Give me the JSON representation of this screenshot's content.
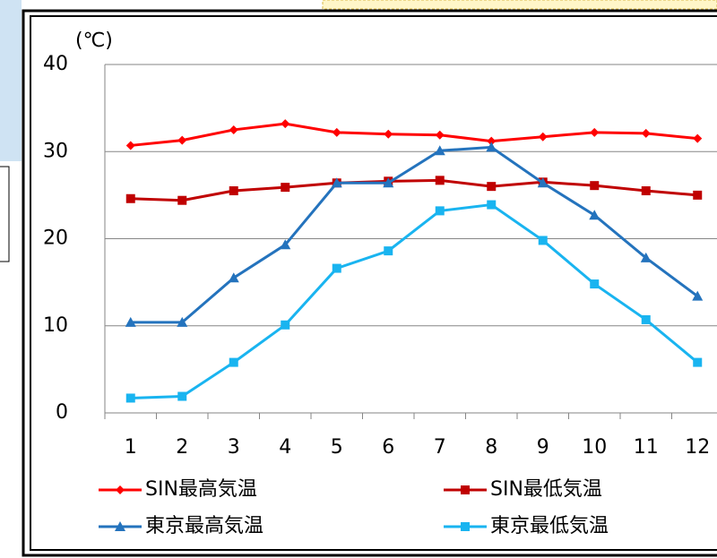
{
  "chart_data": {
    "type": "line",
    "unit_label": "(℃)",
    "categories": [
      "1",
      "2",
      "3",
      "4",
      "5",
      "6",
      "7",
      "8",
      "9",
      "10",
      "11",
      "12"
    ],
    "ylim": [
      0,
      40
    ],
    "yticks": [
      0,
      10,
      20,
      30,
      40
    ],
    "grid": true,
    "series": [
      {
        "name": "SIN最高気温",
        "color": "#ff0000",
        "marker": "diamond",
        "values": [
          30.7,
          31.3,
          32.5,
          33.2,
          32.2,
          32.0,
          31.9,
          31.2,
          31.7,
          32.2,
          32.1,
          31.5
        ]
      },
      {
        "name": "SIN最低気温",
        "color": "#c00000",
        "marker": "square",
        "values": [
          24.6,
          24.4,
          25.5,
          25.9,
          26.4,
          26.6,
          26.7,
          26.0,
          26.5,
          26.1,
          25.5,
          25.0
        ]
      },
      {
        "name": "東京最高気温",
        "color": "#2473bd",
        "marker": "triangle",
        "values": [
          10.4,
          10.4,
          15.5,
          19.3,
          26.4,
          26.4,
          30.1,
          30.5,
          26.4,
          22.7,
          17.8,
          13.4
        ]
      },
      {
        "name": "東京最低気温",
        "color": "#19b4f0",
        "marker": "square",
        "values": [
          1.7,
          1.9,
          5.8,
          10.1,
          16.6,
          18.6,
          23.2,
          23.9,
          19.8,
          14.8,
          10.7,
          5.8
        ]
      }
    ]
  }
}
